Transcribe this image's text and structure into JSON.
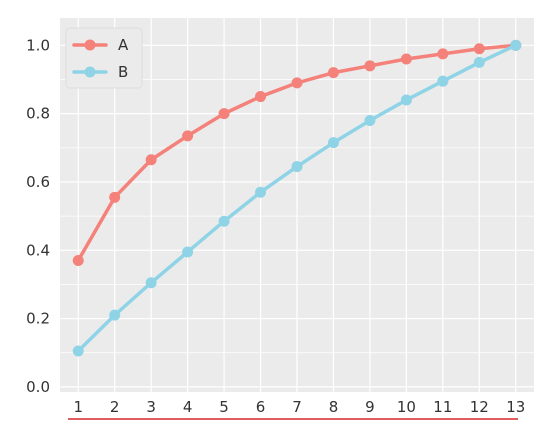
{
  "chart_data": {
    "type": "line",
    "x": [
      1,
      2,
      3,
      4,
      5,
      6,
      7,
      8,
      9,
      10,
      11,
      12,
      13
    ],
    "series": [
      {
        "name": "A",
        "values": [
          0.37,
          0.555,
          0.665,
          0.735,
          0.8,
          0.85,
          0.89,
          0.92,
          0.94,
          0.96,
          0.975,
          0.99,
          1.0
        ]
      },
      {
        "name": "B",
        "values": [
          0.105,
          0.21,
          0.305,
          0.395,
          0.485,
          0.57,
          0.645,
          0.715,
          0.78,
          0.84,
          0.895,
          0.95,
          1.0
        ]
      }
    ],
    "xticks": [
      "1",
      "2",
      "3",
      "4",
      "5",
      "6",
      "7",
      "8",
      "9",
      "10",
      "11",
      "12",
      "13"
    ],
    "yticks": [
      "0.0",
      "0.2",
      "0.4",
      "0.6",
      "0.8",
      "1.0"
    ],
    "ytick_values": [
      0.0,
      0.2,
      0.4,
      0.6,
      0.8,
      1.0
    ],
    "xlim": [
      0.5,
      13.5
    ],
    "ylim": [
      -0.015,
      1.08
    ],
    "grid": true,
    "legend": "top-left",
    "colors": {
      "series": [
        "#f4817a",
        "#8fd3e6"
      ],
      "plot_background": "#ebebeb",
      "grid": "#ffffff",
      "underline": "#d62728"
    }
  }
}
